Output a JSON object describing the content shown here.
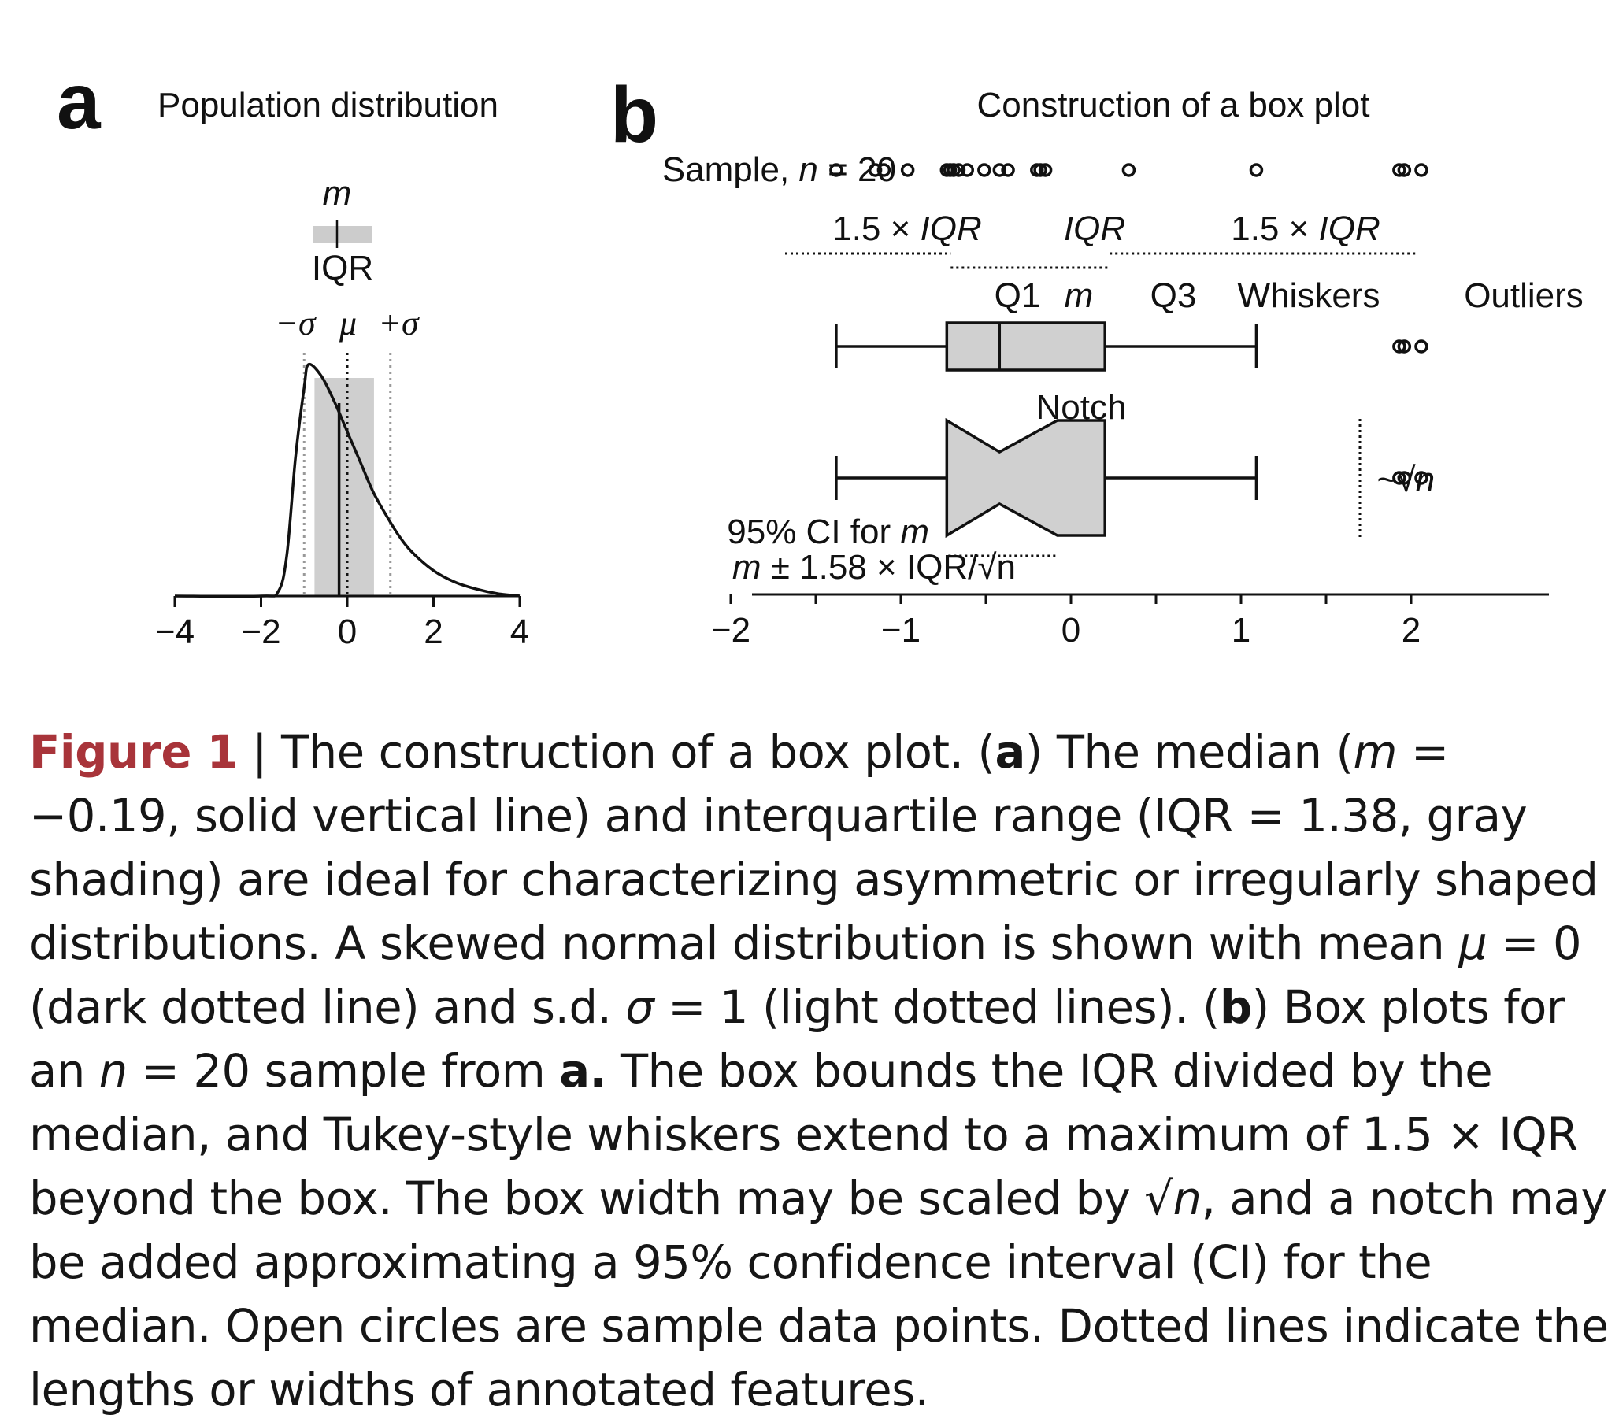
{
  "panel_a": {
    "letter": "a",
    "title": "Population distribution",
    "median_label": "m",
    "iqr_label": "IQR",
    "minus_sigma": "−σ",
    "mu": "μ",
    "plus_sigma": "+σ"
  },
  "panel_b": {
    "letter": "b",
    "title": "Construction of a box plot",
    "sample_label_prefix": "Sample, ",
    "sample_label_n": "n",
    "sample_label_suffix": " = 20",
    "span_left_num": "1.5 × ",
    "span_left_iqr": "IQR",
    "span_mid": "IQR",
    "span_right_num": "1.5 × ",
    "span_right_iqr": "IQR",
    "q1": "Q1",
    "m": "m",
    "q3": "Q3",
    "whiskers": "Whiskers",
    "outliers": "Outliers",
    "notch": "Notch",
    "sqrt_n": "~√n",
    "ci_line1_text": "95% CI for ",
    "ci_line1_m": "m",
    "ci_line2_m": "m",
    "ci_line2_text": " ± 1.58 × IQR/√n"
  },
  "chart_data": [
    {
      "type": "area",
      "panel": "a",
      "description_of_marks": "skewed normal density",
      "xlim": [
        -4,
        4
      ],
      "xticks": [
        "−4",
        "−2",
        "0",
        "2",
        "4"
      ],
      "density": {
        "x": [
          -4,
          -2.0,
          -1.6,
          -1.4,
          -1.2,
          -1.0,
          -0.9,
          -0.6,
          -0.3,
          0.0,
          0.3,
          0.6,
          0.9,
          1.2,
          1.5,
          2.0,
          2.5,
          3.0,
          3.5,
          4.0
        ],
        "y": [
          0.0,
          0.0,
          0.02,
          0.18,
          0.6,
          0.9,
          1.0,
          0.95,
          0.84,
          0.71,
          0.58,
          0.45,
          0.35,
          0.26,
          0.19,
          0.11,
          0.06,
          0.03,
          0.01,
          0.0
        ]
      },
      "median": -0.19,
      "iqr": [
        -0.76,
        0.62
      ],
      "mean": 0,
      "sd": 1
    },
    {
      "type": "scatter",
      "panel": "b",
      "xlim": [
        -2.3,
        2.3
      ],
      "xticks": [
        "−2",
        "−1",
        "0",
        "1",
        "2"
      ],
      "sample": [
        -1.38,
        -1.15,
        -1.1,
        -0.96,
        -0.73,
        -0.71,
        -0.69,
        -0.66,
        -0.61,
        -0.51,
        -0.42,
        -0.37,
        -0.2,
        -0.18,
        -0.15,
        0.34,
        1.09,
        1.93,
        1.96,
        2.06
      ],
      "q1": -0.73,
      "median": -0.42,
      "q3": 0.2,
      "whisker_low": -1.38,
      "whisker_high": 1.09,
      "outliers": [
        1.93,
        1.96,
        2.06
      ],
      "notch_ci": [
        -0.73,
        -0.08
      ]
    }
  ],
  "caption": {
    "fig_label": "Figure 1",
    "sep": " | ",
    "t1": "The construction of a box plot. (",
    "a1": "a",
    "t2": ") The median (",
    "m1": "m",
    "t3": " = −0.19, solid vertical line) and interquartile range (IQR = 1.38, gray shading) are ideal for characterizing asymmetric or irregularly shaped distributions. A skewed normal distribution is shown with mean ",
    "mu": "μ",
    "t4": " = 0 (dark dotted line) and s.d. ",
    "sigma": "σ",
    "t5": " = 1 (light dotted lines). (",
    "b1": "b",
    "t6": ") Box plots for an ",
    "n1": "n",
    "t7": " = 20 sample from ",
    "a2": "a.",
    "t8": " The box bounds the IQR divided by the median, and Tukey-style whiskers extend to a maximum of 1.5 × IQR beyond the box. The box width may be scaled by √",
    "n2": "n",
    "t9": ", and a notch may be added approximating a 95% confidence interval (CI) for the median. Open circles are sample data points. Dotted lines indicate the lengths or widths of annotated features."
  }
}
